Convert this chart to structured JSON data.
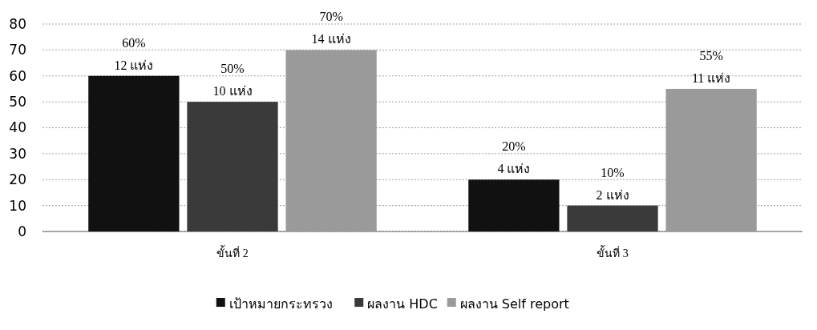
{
  "chart_data": {
    "type": "bar",
    "categories": [
      "ขั้นที่ 2",
      "ขั้นที่ 3"
    ],
    "series": [
      {
        "name": "เป้าหมายกระทรวง",
        "color": "#111111",
        "values": [
          60,
          20
        ],
        "value_labels": [
          "60%\n12 แห่ง",
          "20%\n4 แห่ง"
        ]
      },
      {
        "name": "ผลงาน HDC",
        "color": "#3a3a3a",
        "values": [
          50,
          10
        ],
        "value_labels": [
          "50%\n10 แห่ง",
          "10%\n2 แห่ง"
        ]
      },
      {
        "name": "ผลงาน Self report",
        "color": "#9a9a9a",
        "values": [
          70,
          55
        ],
        "value_labels": [
          "70%\n14 แห่ง",
          "55%\n11 แห่ง"
        ]
      }
    ],
    "ylim": [
      0,
      80
    ],
    "yticks": [
      0,
      10,
      20,
      30,
      40,
      50,
      60,
      70,
      80
    ],
    "grid": "y",
    "legend": "bottom"
  }
}
